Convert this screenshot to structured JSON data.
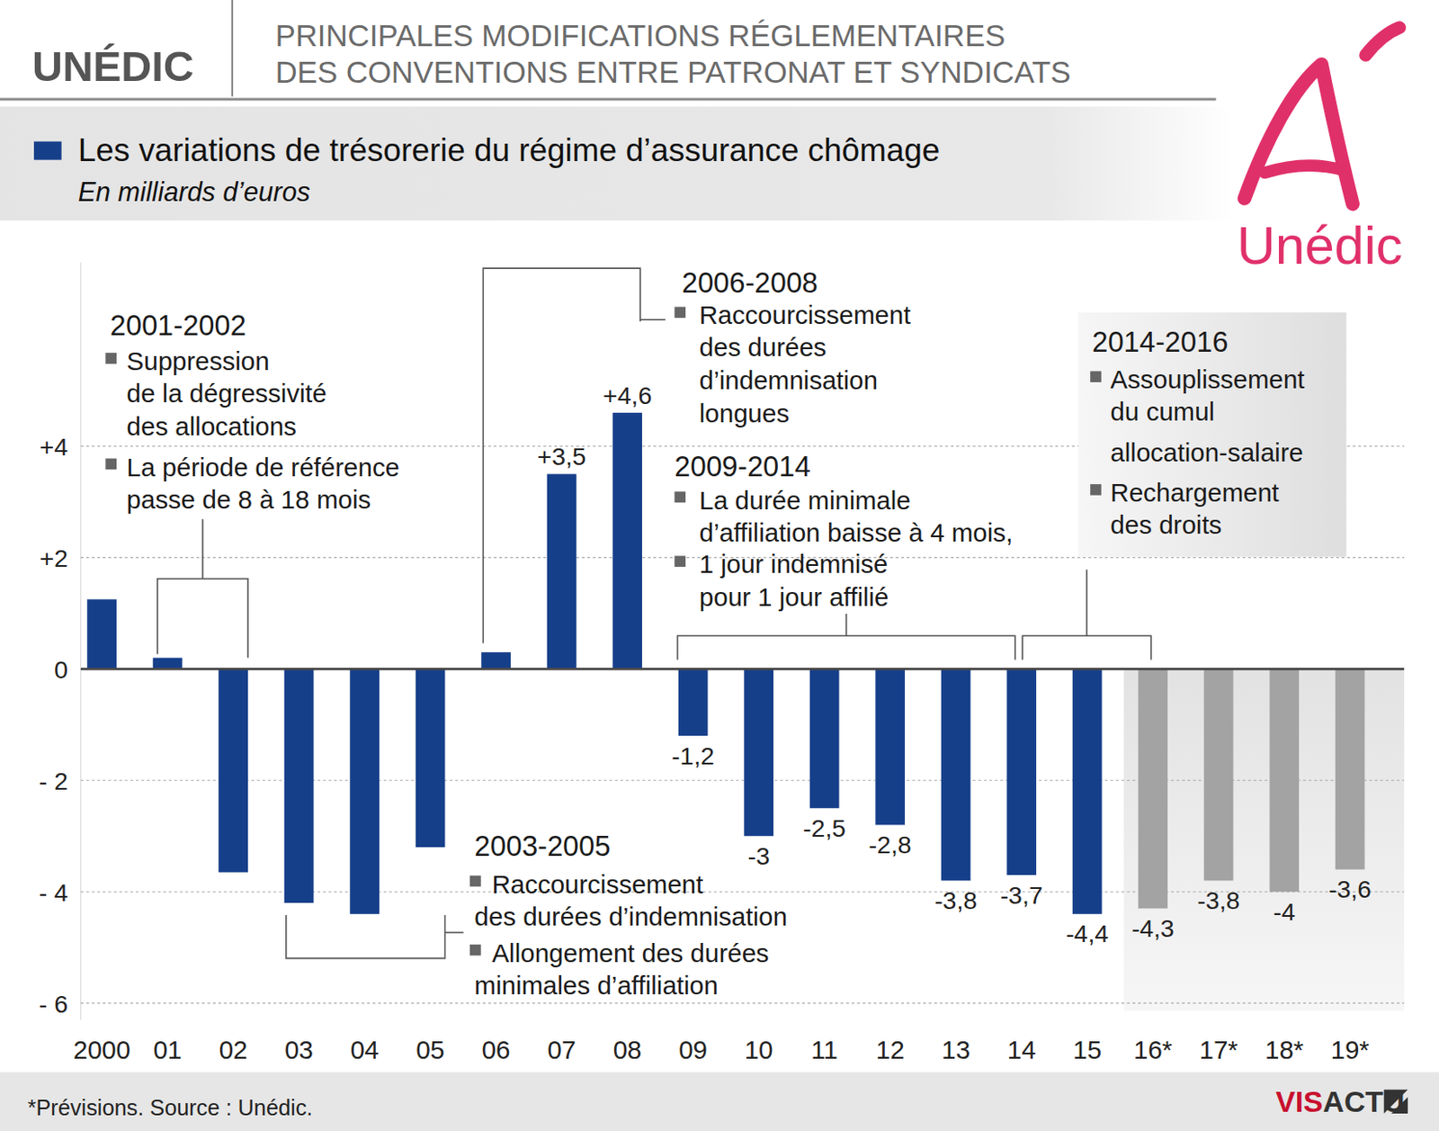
{
  "chart_data": {
    "type": "bar",
    "header": "UNÉDIC",
    "title": [
      "PRINCIPALES MODIFICATIONS RÉGLEMENTAIRES",
      "DES CONVENTIONS ENTRE PATRONAT ET SYNDICATS"
    ],
    "subtitle": "Les variations de trésorerie du régime d’assurance chômage",
    "y_unit": "En milliards d’euros",
    "categories": [
      "2000",
      "01",
      "02",
      "03",
      "04",
      "05",
      "06",
      "07",
      "08",
      "09",
      "10",
      "11",
      "12",
      "13",
      "14",
      "15",
      "16*",
      "17*",
      "18*",
      "19*"
    ],
    "values": [
      1.25,
      0.2,
      -3.65,
      -4.2,
      -4.4,
      -3.2,
      0.3,
      3.5,
      4.6,
      -1.2,
      -3,
      -2.5,
      -2.8,
      -3.8,
      -3.7,
      -4.4,
      -4.3,
      -3.8,
      -4,
      -3.6
    ],
    "value_labels": [
      null,
      null,
      null,
      null,
      null,
      null,
      null,
      "+3,5",
      "+4,6",
      "-1,2",
      "-3",
      "-2,5",
      "-2,8",
      "-3,8",
      "-3,7",
      "-4,4",
      "-4,3",
      "-3,8",
      "-4",
      "-3,6"
    ],
    "colors": [
      "#163f8a",
      "#163f8a",
      "#163f8a",
      "#163f8a",
      "#163f8a",
      "#163f8a",
      "#163f8a",
      "#163f8a",
      "#163f8a",
      "#163f8a",
      "#163f8a",
      "#163f8a",
      "#163f8a",
      "#163f8a",
      "#163f8a",
      "#163f8a",
      "#a3a3a3",
      "#a3a3a3",
      "#a3a3a3",
      "#a3a3a3"
    ],
    "data_labels": true,
    "ylim": [
      -6.3,
      7.3
    ],
    "yticks": [
      {
        "value": -6,
        "label": "- 6"
      },
      {
        "value": -4,
        "label": "- 4"
      },
      {
        "value": -2,
        "label": "- 2"
      },
      0,
      {
        "value": 2,
        "label": "+2"
      },
      {
        "value": 4,
        "label": "+4"
      }
    ],
    "grid": true,
    "annotations": [
      {
        "title": "2001-2002",
        "span": [
          "01",
          "02"
        ],
        "items": [
          [
            "Suppression",
            "de la dégressivité",
            "des allocations"
          ],
          [
            "La période de référence",
            "passe de 8 à 18 mois"
          ]
        ]
      },
      {
        "title": "2003-2005",
        "span": [
          "03",
          "05"
        ],
        "items": [
          [
            "Raccourcissement",
            "des durées d’indemnisation"
          ],
          [
            "Allongement des durées",
            "minimales d’affiliation"
          ]
        ]
      },
      {
        "title": "2006-2008",
        "span": [
          "06",
          "08"
        ],
        "items": [
          [
            "Raccourcissement",
            "des durées",
            "d’indemnisation",
            "longues"
          ]
        ]
      },
      {
        "title": "2009-2014",
        "span": [
          "09",
          "14"
        ],
        "items": [
          [
            "La durée minimale",
            "d’affiliation baisse à 4 mois,"
          ],
          [
            "1 jour indemnisé",
            "pour 1 jour affilié"
          ]
        ]
      },
      {
        "title": "2014-2016",
        "span": [
          "14",
          "16*"
        ],
        "items": [
          [
            "Assouplissement",
            "du cumul",
            "allocation-salaire"
          ],
          [
            "Rechargement",
            "des droits"
          ]
        ]
      }
    ],
    "footnote": "*Prévisions. Source : Unédic.",
    "logo": "Unédic",
    "credit": "VISACTU"
  }
}
